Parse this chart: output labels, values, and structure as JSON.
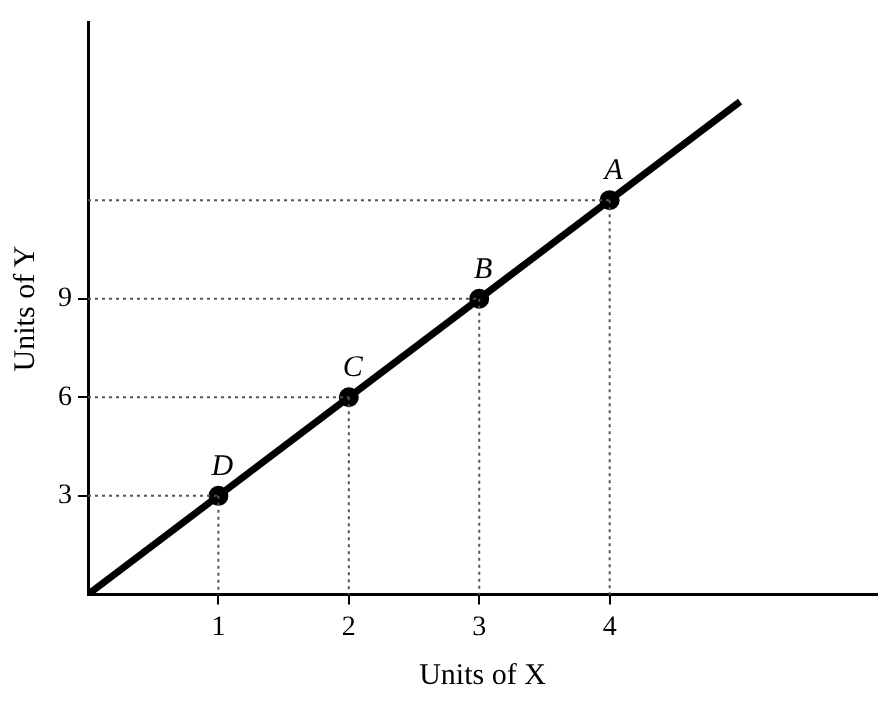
{
  "chart_data": {
    "type": "line",
    "xlabel": "Units of X",
    "ylabel": "Units of Y",
    "xlim": [
      0,
      6.05
    ],
    "ylim": [
      0,
      17.4
    ],
    "xticks": [
      1,
      2,
      3,
      4
    ],
    "yticks": [
      3,
      6,
      9
    ],
    "grid": false,
    "legend": false,
    "line_style": "solid",
    "series": [
      {
        "color": "#000000",
        "x": [
          0,
          5
        ],
        "values": [
          0,
          15
        ],
        "marker": "none"
      },
      {
        "type": "scatter",
        "color": "#000000",
        "x": [
          1,
          2,
          3,
          4
        ],
        "values": [
          3,
          6,
          9,
          12
        ],
        "marker": "circle"
      }
    ],
    "annotations": [
      {
        "text": "D",
        "x": 1,
        "y": 3
      },
      {
        "text": "C",
        "x": 2,
        "y": 6
      },
      {
        "text": "B",
        "x": 3,
        "y": 9
      },
      {
        "text": "A",
        "x": 4,
        "y": 12
      }
    ]
  }
}
